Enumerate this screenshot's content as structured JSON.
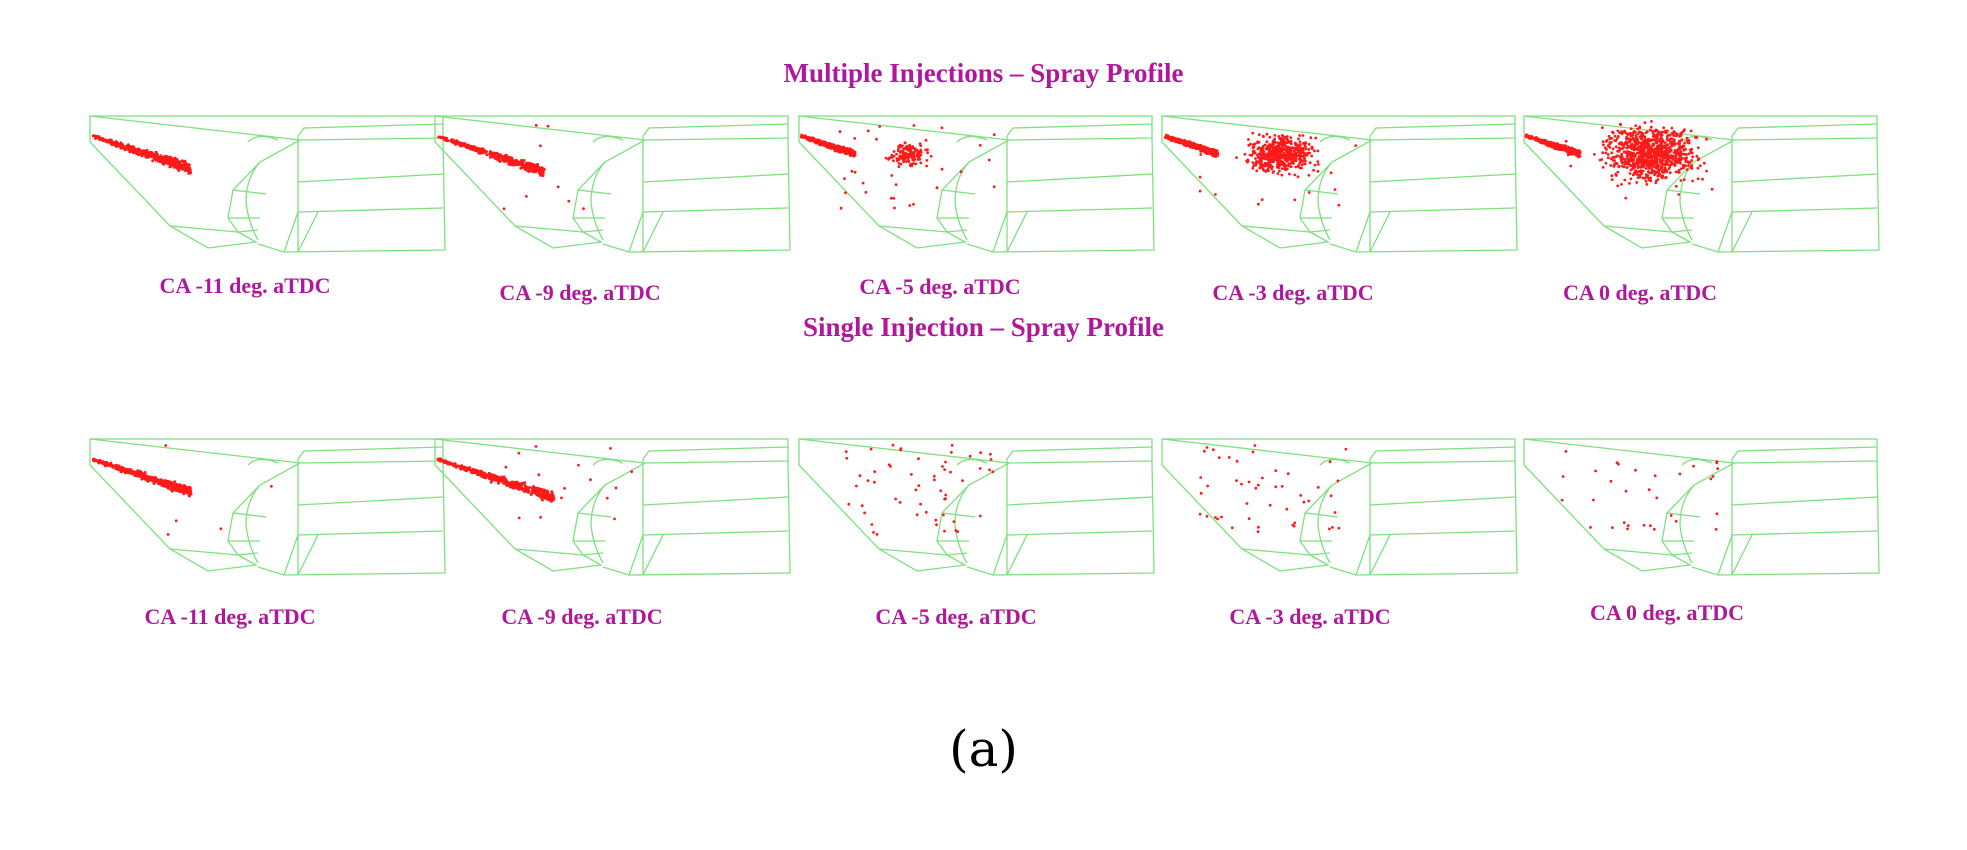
{
  "colors": {
    "label": "#b0179a",
    "mesh": "#7ee07e",
    "spray": "#ff1a1a"
  },
  "sublabel": "(a)",
  "rows": [
    {
      "title": "Multiple Injections – Spray Profile",
      "panels": [
        {
          "caption": "CA -11 deg. aTDC",
          "spray": {
            "reach": 0.55,
            "spread": 0.12,
            "plume": 0.0,
            "scatter": 0.0,
            "density": 1.0
          }
        },
        {
          "caption": "CA -9 deg. aTDC",
          "spray": {
            "reach": 0.6,
            "spread": 0.1,
            "plume": 0.0,
            "scatter": 0.06,
            "density": 0.9
          }
        },
        {
          "caption": "CA -5 deg. aTDC",
          "spray": {
            "reach": 0.3,
            "spread": 0.12,
            "plume": 0.15,
            "scatter": 0.2,
            "density": 0.9
          }
        },
        {
          "caption": "CA -3 deg. aTDC",
          "spray": {
            "reach": 0.3,
            "spread": 0.1,
            "plume": 0.55,
            "scatter": 0.12,
            "density": 1.0
          }
        },
        {
          "caption": "CA 0 deg. aTDC",
          "spray": {
            "reach": 0.3,
            "spread": 0.1,
            "plume": 0.95,
            "scatter": 0.1,
            "density": 1.0
          }
        }
      ]
    },
    {
      "title": "Single Injection – Spray Profile",
      "panels": [
        {
          "caption": "CA -11 deg. aTDC",
          "spray": {
            "reach": 0.55,
            "spread": 0.1,
            "plume": 0.0,
            "scatter": 0.03,
            "density": 1.0
          }
        },
        {
          "caption": "CA -9 deg. aTDC",
          "spray": {
            "reach": 0.65,
            "spread": 0.1,
            "plume": 0.0,
            "scatter": 0.1,
            "density": 1.0
          }
        },
        {
          "caption": "CA -5 deg. aTDC",
          "spray": {
            "reach": 0.0,
            "spread": 0.0,
            "plume": 0.0,
            "scatter": 0.35,
            "density": 0.35
          }
        },
        {
          "caption": "CA -3 deg. aTDC",
          "spray": {
            "reach": 0.0,
            "spread": 0.0,
            "plume": 0.0,
            "scatter": 0.3,
            "density": 0.3
          }
        },
        {
          "caption": "CA 0 deg. aTDC",
          "spray": {
            "reach": 0.0,
            "spread": 0.0,
            "plume": 0.0,
            "scatter": 0.2,
            "density": 0.2
          }
        }
      ]
    }
  ]
}
